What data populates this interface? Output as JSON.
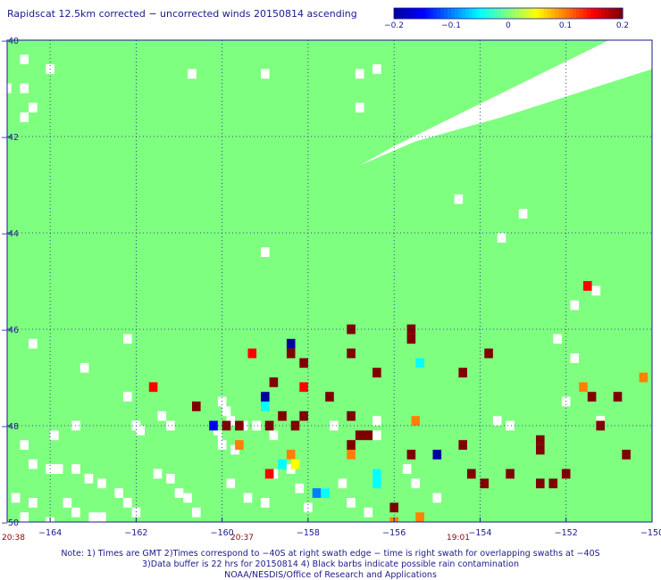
{
  "title": "Rapidscat 12.5km corrected − uncorrected winds 20150814 ascending",
  "chart_data": {
    "type": "heatmap",
    "xlim": [
      -165,
      -150
    ],
    "ylim": [
      -50,
      -40
    ],
    "x_ticks": [
      -164,
      -162,
      -160,
      -158,
      -156,
      -154,
      -152,
      -150
    ],
    "y_ticks": [
      -40,
      -42,
      -44,
      -46,
      -48,
      -50
    ],
    "x_tick_labels": [
      "−164",
      "−162",
      "−160",
      "−158",
      "−156",
      "−154",
      "−152",
      "−150"
    ],
    "y_tick_labels": [
      "−40",
      "−42",
      "−44",
      "−46",
      "−48",
      "−50"
    ],
    "colorbar": {
      "min": -0.2,
      "max": 0.2,
      "ticks": [
        -0.2,
        -0.1,
        0,
        0.1,
        0.2
      ],
      "tick_labels": [
        "−0.2",
        "−0.1",
        "0",
        "0.1",
        "0.2"
      ],
      "colors": [
        "#0000a0",
        "#0000ff",
        "#0080ff",
        "#00ffff",
        "#7fff7f",
        "#ffff00",
        "#ff8000",
        "#ff0000",
        "#800000"
      ]
    },
    "background_value": 0,
    "grid": true,
    "gridline_style": "dotted",
    "no_data_region": {
      "description": "white no-data gap along the swath edge near the top right",
      "polygon": [
        [
          -156.0,
          -42.2
        ],
        [
          -151.0,
          -40.0
        ],
        [
          -150.0,
          -40.0
        ],
        [
          -150.0,
          -40.6
        ],
        [
          -153.5,
          -41.6
        ],
        [
          -155.5,
          -42.1
        ],
        [
          -156.8,
          -42.6
        ]
      ]
    },
    "no_data_cells": [
      [
        -164.6,
        -40.4
      ],
      [
        -164.0,
        -40.6
      ],
      [
        -164.6,
        -41.0
      ],
      [
        -164.4,
        -41.4
      ],
      [
        -164.6,
        -41.6
      ],
      [
        -160.7,
        -40.7
      ],
      [
        -159.0,
        -40.7
      ],
      [
        -165.0,
        -41.0
      ],
      [
        -159.0,
        -44.4
      ],
      [
        -156.4,
        -40.6
      ],
      [
        -156.8,
        -40.7
      ],
      [
        -156.8,
        -41.4
      ],
      [
        -154.5,
        -43.3
      ],
      [
        -153.5,
        -44.1
      ],
      [
        -153.0,
        -43.6
      ],
      [
        -151.3,
        -45.2
      ],
      [
        -151.8,
        -45.5
      ],
      [
        -152.2,
        -46.2
      ],
      [
        -151.8,
        -46.6
      ],
      [
        -162.2,
        -46.2
      ],
      [
        -164.4,
        -46.3
      ],
      [
        -163.2,
        -46.8
      ],
      [
        -152.0,
        -47.5
      ],
      [
        -151.2,
        -47.9
      ],
      [
        -162.2,
        -47.4
      ],
      [
        -161.4,
        -47.8
      ],
      [
        -161.2,
        -48.0
      ],
      [
        -160.0,
        -47.5
      ],
      [
        -159.9,
        -47.7
      ],
      [
        -159.8,
        -47.9
      ],
      [
        -163.4,
        -48.0
      ],
      [
        -163.9,
        -48.2
      ],
      [
        -164.6,
        -48.4
      ],
      [
        -162.0,
        -48.0
      ],
      [
        -161.9,
        -48.1
      ],
      [
        -160.1,
        -48.2
      ],
      [
        -160.0,
        -48.4
      ],
      [
        -159.7,
        -48.5
      ],
      [
        -159.5,
        -48.0
      ],
      [
        -159.2,
        -48.0
      ],
      [
        -158.8,
        -48.2
      ],
      [
        -157.4,
        -48.0
      ],
      [
        -156.4,
        -47.9
      ],
      [
        -156.4,
        -48.2
      ],
      [
        -153.6,
        -47.9
      ],
      [
        -153.3,
        -48.0
      ],
      [
        -164.4,
        -48.8
      ],
      [
        -164.0,
        -48.9
      ],
      [
        -163.8,
        -48.9
      ],
      [
        -163.4,
        -48.9
      ],
      [
        -163.1,
        -49.1
      ],
      [
        -162.8,
        -49.2
      ],
      [
        -162.4,
        -49.4
      ],
      [
        -162.2,
        -49.6
      ],
      [
        -162.0,
        -49.8
      ],
      [
        -161.5,
        -49.0
      ],
      [
        -161.2,
        -49.1
      ],
      [
        -161.0,
        -49.4
      ],
      [
        -160.8,
        -49.5
      ],
      [
        -160.6,
        -49.8
      ],
      [
        -159.8,
        -49.2
      ],
      [
        -159.4,
        -49.5
      ],
      [
        -159.0,
        -49.6
      ],
      [
        -158.8,
        -49.0
      ],
      [
        -158.4,
        -48.9
      ],
      [
        -158.2,
        -49.3
      ],
      [
        -158.0,
        -49.7
      ],
      [
        -157.6,
        -49.4
      ],
      [
        -157.2,
        -49.2
      ],
      [
        -157.0,
        -49.6
      ],
      [
        -156.6,
        -49.8
      ],
      [
        -156.4,
        -49.0
      ],
      [
        -155.7,
        -48.9
      ],
      [
        -155.5,
        -49.2
      ],
      [
        -155.0,
        -49.5
      ],
      [
        -164.8,
        -49.5
      ],
      [
        -164.4,
        -49.6
      ],
      [
        -164.6,
        -49.9
      ],
      [
        -164.0,
        -50.0
      ],
      [
        -163.6,
        -49.6
      ],
      [
        -163.4,
        -49.8
      ],
      [
        -163.0,
        -49.9
      ],
      [
        -162.8,
        -49.9
      ]
    ],
    "cells": [
      {
        "lon": -151.5,
        "lat": -45.1,
        "value": 0.15
      },
      {
        "lon": -157.0,
        "lat": -46.0,
        "value": 0.2
      },
      {
        "lon": -155.6,
        "lat": -46.0,
        "value": 0.2
      },
      {
        "lon": -155.6,
        "lat": -46.2,
        "value": 0.2
      },
      {
        "lon": -158.4,
        "lat": -46.3,
        "value": -0.2
      },
      {
        "lon": -158.4,
        "lat": -46.5,
        "value": 0.2
      },
      {
        "lon": -159.3,
        "lat": -46.5,
        "value": 0.14
      },
      {
        "lon": -157.0,
        "lat": -46.5,
        "value": 0.2
      },
      {
        "lon": -153.8,
        "lat": -46.5,
        "value": 0.2
      },
      {
        "lon": -158.1,
        "lat": -46.7,
        "value": 0.2
      },
      {
        "lon": -155.4,
        "lat": -46.7,
        "value": -0.06
      },
      {
        "lon": -156.4,
        "lat": -46.9,
        "value": 0.2
      },
      {
        "lon": -154.4,
        "lat": -46.9,
        "value": 0.2
      },
      {
        "lon": -158.8,
        "lat": -47.1,
        "value": 0.2
      },
      {
        "lon": -161.6,
        "lat": -47.2,
        "value": 0.14
      },
      {
        "lon": -158.1,
        "lat": -47.2,
        "value": 0.15
      },
      {
        "lon": -151.6,
        "lat": -47.2,
        "value": 0.1
      },
      {
        "lon": -152.1,
        "lat": -47.1,
        "value": 0.02
      },
      {
        "lon": -150.2,
        "lat": -47.0,
        "value": 0.08
      },
      {
        "lon": -159.0,
        "lat": -47.4,
        "value": -0.19
      },
      {
        "lon": -157.5,
        "lat": -47.4,
        "value": 0.2
      },
      {
        "lon": -151.4,
        "lat": -47.4,
        "value": 0.2
      },
      {
        "lon": -150.8,
        "lat": -47.4,
        "value": 0.2
      },
      {
        "lon": -159.0,
        "lat": -47.6,
        "value": -0.04
      },
      {
        "lon": -160.6,
        "lat": -47.6,
        "value": 0.2
      },
      {
        "lon": -158.6,
        "lat": -47.8,
        "value": 0.2
      },
      {
        "lon": -158.1,
        "lat": -47.8,
        "value": 0.2
      },
      {
        "lon": -157.0,
        "lat": -47.8,
        "value": 0.2
      },
      {
        "lon": -155.5,
        "lat": -47.9,
        "value": 0.1
      },
      {
        "lon": -160.2,
        "lat": -48.0,
        "value": -0.17
      },
      {
        "lon": -159.9,
        "lat": -48.0,
        "value": 0.2
      },
      {
        "lon": -159.6,
        "lat": -48.0,
        "value": 0.2
      },
      {
        "lon": -158.9,
        "lat": -48.0,
        "value": 0.2
      },
      {
        "lon": -158.3,
        "lat": -48.0,
        "value": 0.2
      },
      {
        "lon": -153.8,
        "lat": -48.0,
        "value": -0.02
      },
      {
        "lon": -151.2,
        "lat": -48.0,
        "value": 0.2
      },
      {
        "lon": -156.8,
        "lat": -48.2,
        "value": 0.2
      },
      {
        "lon": -156.6,
        "lat": -48.2,
        "value": 0.2
      },
      {
        "lon": -160.2,
        "lat": -48.3,
        "value": -0.01
      },
      {
        "lon": -159.6,
        "lat": -48.4,
        "value": 0.12
      },
      {
        "lon": -157.0,
        "lat": -48.4,
        "value": 0.2
      },
      {
        "lon": -154.4,
        "lat": -48.4,
        "value": 0.2
      },
      {
        "lon": -152.6,
        "lat": -48.3,
        "value": 0.2
      },
      {
        "lon": -152.6,
        "lat": -48.5,
        "value": 0.2
      },
      {
        "lon": -158.4,
        "lat": -48.6,
        "value": 0.12
      },
      {
        "lon": -157.0,
        "lat": -48.6,
        "value": 0.1
      },
      {
        "lon": -155.6,
        "lat": -48.6,
        "value": 0.2
      },
      {
        "lon": -155.0,
        "lat": -48.6,
        "value": -0.2
      },
      {
        "lon": -150.6,
        "lat": -48.6,
        "value": 0.2
      },
      {
        "lon": -158.6,
        "lat": -48.8,
        "value": -0.04
      },
      {
        "lon": -158.3,
        "lat": -48.8,
        "value": 0.05
      },
      {
        "lon": -158.9,
        "lat": -49.0,
        "value": 0.17
      },
      {
        "lon": -156.4,
        "lat": -49.0,
        "value": -0.03
      },
      {
        "lon": -154.2,
        "lat": -49.0,
        "value": 0.2
      },
      {
        "lon": -153.3,
        "lat": -49.0,
        "value": 0.2
      },
      {
        "lon": -152.0,
        "lat": -49.0,
        "value": 0.2
      },
      {
        "lon": -156.4,
        "lat": -49.2,
        "value": -0.03
      },
      {
        "lon": -153.9,
        "lat": -49.2,
        "value": 0.2
      },
      {
        "lon": -152.6,
        "lat": -49.2,
        "value": 0.2
      },
      {
        "lon": -152.3,
        "lat": -49.2,
        "value": 0.2
      },
      {
        "lon": -157.8,
        "lat": -49.4,
        "value": -0.1
      },
      {
        "lon": -157.6,
        "lat": -49.4,
        "value": -0.03
      },
      {
        "lon": -156.0,
        "lat": -49.7,
        "value": 0.18
      },
      {
        "lon": -155.4,
        "lat": -49.9,
        "value": 0.1
      },
      {
        "lon": -156.0,
        "lat": -50.0,
        "value": 0.1
      }
    ]
  },
  "time_labels": [
    {
      "text": "20:38"
    },
    {
      "text": "20:37"
    },
    {
      "text": "19:01"
    }
  ],
  "footer": {
    "line1": "Note: 1) Times are GMT 2)Times correspond to −40S at right swath edge − time is right swath for overlapping swaths at −40S",
    "line2": "3)Data buffer is 22 hrs for 20150814 4) Black barbs indicate possible rain contamination",
    "line3": "NOAA/NESDIS/Office of Research and Applications"
  }
}
